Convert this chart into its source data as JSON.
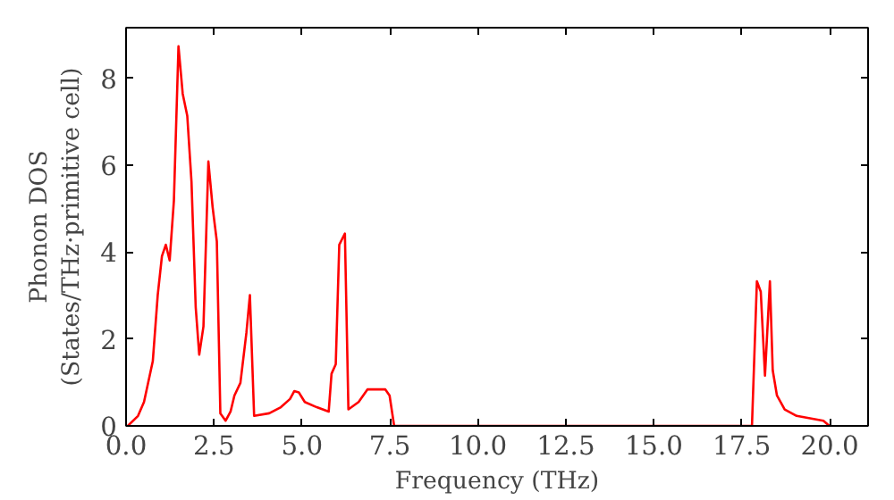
{
  "chart_data": {
    "type": "line",
    "xlabel": "Frequency (THz)",
    "ylabel": "Phonon DOS\n(States/THz·primitive cell)",
    "x": [
      0.05,
      0.34,
      0.51,
      0.76,
      0.9,
      1.02,
      1.13,
      1.24,
      1.36,
      1.49,
      1.61,
      1.74,
      1.86,
      1.98,
      2.08,
      2.2,
      2.34,
      2.46,
      2.58,
      2.68,
      2.83,
      2.97,
      3.08,
      3.25,
      3.42,
      3.52,
      3.64,
      4.07,
      4.4,
      4.66,
      4.78,
      4.91,
      5.08,
      5.42,
      5.76,
      5.84,
      5.96,
      6.06,
      6.22,
      6.32,
      6.61,
      6.86,
      7.12,
      7.37,
      7.49,
      7.62,
      17.79,
      17.93,
      18.04,
      18.16,
      18.3,
      18.38,
      18.5,
      18.72,
      19.06,
      19.82,
      19.99
    ],
    "series": [
      {
        "color": "#ff0000",
        "values": [
          0,
          0.23,
          0.55,
          1.49,
          3.01,
          3.91,
          4.17,
          3.81,
          5.19,
          8.74,
          7.65,
          7.14,
          5.62,
          2.73,
          1.64,
          2.29,
          6.09,
          5.04,
          4.25,
          0.29,
          0.12,
          0.33,
          0.7,
          0.99,
          2.14,
          3.01,
          0.23,
          0.29,
          0.43,
          0.62,
          0.8,
          0.77,
          0.55,
          0.43,
          0.33,
          1.2,
          1.42,
          4.17,
          4.43,
          0.38,
          0.55,
          0.84,
          0.84,
          0.84,
          0.7,
          0,
          0,
          3.33,
          3.09,
          1.16,
          3.33,
          1.28,
          0.7,
          0.38,
          0.23,
          0.12,
          0
        ]
      }
    ],
    "xlim": [
      0,
      21.09
    ],
    "ylim": [
      0,
      9.17
    ],
    "xticks": [
      {
        "value": 0,
        "label": "0.0"
      },
      {
        "value": 2.5,
        "label": "2.5"
      },
      {
        "value": 5,
        "label": "5.0"
      },
      {
        "value": 7.5,
        "label": "7.5"
      },
      {
        "value": 10,
        "label": "10.0"
      },
      {
        "value": 12.5,
        "label": "12.5"
      },
      {
        "value": 15,
        "label": "15.0"
      },
      {
        "value": 17.5,
        "label": "17.5"
      },
      {
        "value": 20,
        "label": "20.0"
      }
    ],
    "yticks": [
      0,
      2,
      4,
      6,
      8
    ],
    "grid": false
  }
}
